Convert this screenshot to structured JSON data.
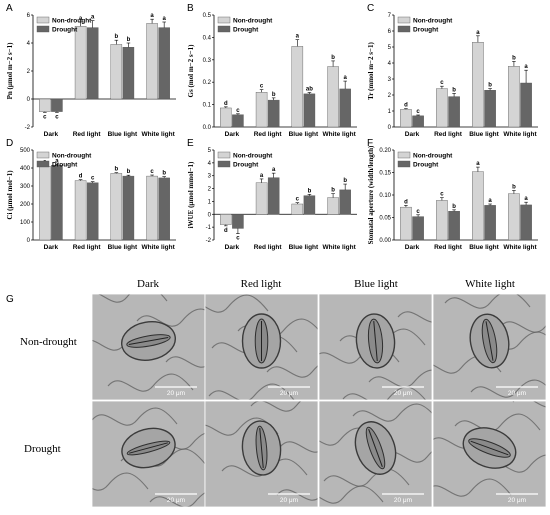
{
  "figure": {
    "panel_g_label": "G",
    "col_headers": [
      "Dark",
      "Red light",
      "Blue light",
      "White light"
    ],
    "row_headers": [
      "Non-drought",
      "Drought"
    ],
    "scale_label": "20 μm"
  },
  "colors": {
    "non_drought": "#d4d4d4",
    "drought": "#666666",
    "micro_bg": "#b7b7b7"
  },
  "chart_data": [
    {
      "panel": "A",
      "type": "bar",
      "ylabel": "Pn (μmol m−2 s−1)",
      "categories": [
        "Dark",
        "Red light",
        "Blue light",
        "White light"
      ],
      "ylim": [
        -2,
        6
      ],
      "yticks": [
        -2,
        0,
        2,
        4,
        6
      ],
      "legend": "top-left",
      "series": [
        {
          "name": "Non-drought",
          "values": [
            -0.9,
            5.2,
            3.9,
            5.4
          ],
          "err": [
            0.05,
            0.3,
            0.3,
            0.3
          ],
          "sig": [
            "c",
            "a",
            "b",
            "a"
          ]
        },
        {
          "name": "Drought",
          "values": [
            -0.9,
            5.1,
            3.7,
            5.1
          ],
          "err": [
            0.05,
            0.5,
            0.3,
            0.4
          ],
          "sig": [
            "c",
            "a",
            "b",
            "a"
          ]
        }
      ]
    },
    {
      "panel": "B",
      "type": "bar",
      "ylabel": "Gs (mol m−2 s−1)",
      "categories": [
        "Dark",
        "Red light",
        "Blue light",
        "White light"
      ],
      "ylim": [
        0,
        0.5
      ],
      "yticks": [
        0.0,
        0.1,
        0.2,
        0.3,
        0.4,
        0.5
      ],
      "legend": "top-left",
      "series": [
        {
          "name": "Non-drought",
          "values": [
            0.085,
            0.155,
            0.36,
            0.27
          ],
          "err": [
            0.005,
            0.012,
            0.03,
            0.025
          ],
          "sig": [
            "d",
            "c",
            "a",
            "b"
          ]
        },
        {
          "name": "Drought",
          "values": [
            0.055,
            0.12,
            0.148,
            0.17
          ],
          "err": [
            0.004,
            0.01,
            0.006,
            0.035
          ],
          "sig": [
            "c",
            "b",
            "ab",
            "a"
          ]
        }
      ]
    },
    {
      "panel": "C",
      "type": "bar",
      "ylabel": "Tr (mmol m−2 s−1)",
      "categories": [
        "Dark",
        "Red light",
        "Blue light",
        "White light"
      ],
      "ylim": [
        0,
        7
      ],
      "yticks": [
        0,
        1,
        2,
        3,
        4,
        5,
        6,
        7
      ],
      "legend": "top-left",
      "series": [
        {
          "name": "Non-drought",
          "values": [
            1.1,
            2.4,
            5.3,
            3.8
          ],
          "err": [
            0.05,
            0.15,
            0.4,
            0.3
          ],
          "sig": [
            "d",
            "c",
            "a",
            "b"
          ]
        },
        {
          "name": "Drought",
          "values": [
            0.7,
            1.9,
            2.3,
            2.75
          ],
          "err": [
            0.05,
            0.2,
            0.1,
            0.8
          ],
          "sig": [
            "c",
            "b",
            "b",
            "a"
          ]
        }
      ]
    },
    {
      "panel": "D",
      "type": "bar",
      "ylabel": "Ci (μmol mol−1)",
      "categories": [
        "Dark",
        "Red light",
        "Blue light",
        "White light"
      ],
      "ylim": [
        0,
        500
      ],
      "yticks": [
        0,
        100,
        200,
        300,
        400,
        500
      ],
      "legend": "top-left",
      "series": [
        {
          "name": "Non-drought",
          "values": [
            410,
            330,
            370,
            355
          ],
          "err": [
            5,
            5,
            4,
            6
          ],
          "sig": [
            "a",
            "d",
            "b",
            "c"
          ]
        },
        {
          "name": "Drought",
          "values": [
            415,
            318,
            355,
            345
          ],
          "err": [
            4,
            6,
            5,
            7
          ],
          "sig": [
            "a",
            "c",
            "b",
            "b"
          ]
        }
      ]
    },
    {
      "panel": "E",
      "type": "bar",
      "ylabel": "iWUE (μmol mmol−1)",
      "categories": [
        "Dark",
        "Red light",
        "Blue light",
        "White light"
      ],
      "ylim": [
        -2,
        5
      ],
      "yticks": [
        -2,
        -1,
        0,
        1,
        2,
        3,
        4,
        5
      ],
      "legend": "top-left",
      "series": [
        {
          "name": "Non-drought",
          "values": [
            -0.8,
            2.45,
            0.8,
            1.3
          ],
          "err": [
            0.1,
            0.3,
            0.1,
            0.3
          ],
          "sig": [
            "d",
            "a",
            "c",
            "b"
          ]
        },
        {
          "name": "Drought",
          "values": [
            -1.1,
            2.85,
            1.45,
            1.9
          ],
          "err": [
            0.4,
            0.35,
            0.1,
            0.45
          ],
          "sig": [
            "c",
            "a",
            "b",
            "b"
          ]
        }
      ]
    },
    {
      "panel": "F",
      "type": "bar",
      "ylabel": "Stomatal aperture (width/length)",
      "categories": [
        "Dark",
        "Red light",
        "Blue light",
        "White light"
      ],
      "ylim": [
        0,
        0.2
      ],
      "yticks": [
        0.0,
        0.05,
        0.1,
        0.15,
        0.2
      ],
      "legend": "top-left",
      "series": [
        {
          "name": "Non-drought",
          "values": [
            0.073,
            0.088,
            0.152,
            0.103
          ],
          "err": [
            0.004,
            0.006,
            0.01,
            0.007
          ],
          "sig": [
            "d",
            "c",
            "a",
            "b"
          ]
        },
        {
          "name": "Drought",
          "values": [
            0.052,
            0.064,
            0.077,
            0.078
          ],
          "err": [
            0.004,
            0.003,
            0.003,
            0.006
          ],
          "sig": [
            "c",
            "b",
            "a",
            "a"
          ]
        }
      ]
    }
  ]
}
